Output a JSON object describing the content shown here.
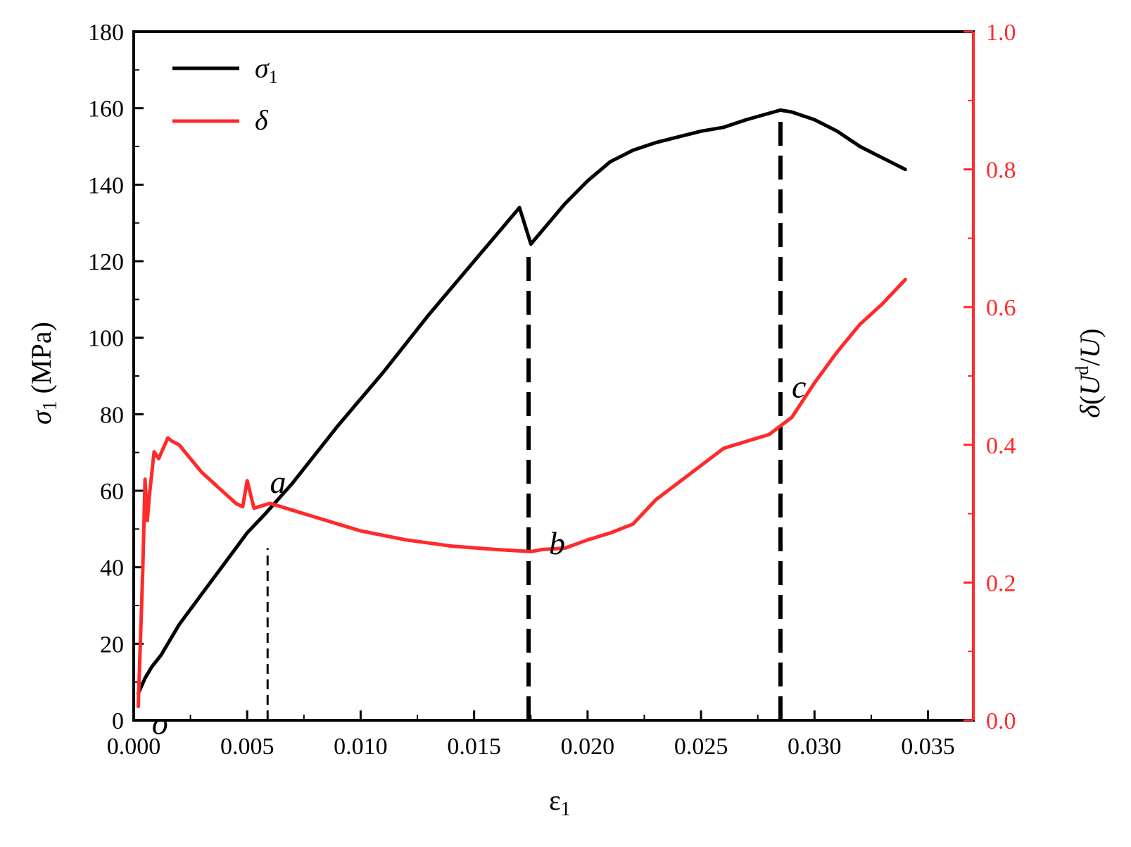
{
  "chart_data": {
    "type": "line",
    "xlabel": "ε",
    "xlabel_sub": "1",
    "ylabel_left": "σ",
    "ylabel_left_sub": "1",
    "ylabel_left_unit": " (MPa)",
    "ylabel_right_prefix": "δ",
    "ylabel_right_paren_open": "(",
    "ylabel_right_U": "U",
    "ylabel_right_sup": "d",
    "ylabel_right_slash": "/",
    "ylabel_right_U2": "U",
    "ylabel_right_paren_close": ")",
    "xlim": [
      0,
      0.037
    ],
    "ylim_left": [
      0,
      180
    ],
    "ylim_right": [
      0,
      1.0
    ],
    "x_ticks": [
      "0.000",
      "0.005",
      "0.010",
      "0.015",
      "0.020",
      "0.025",
      "0.030",
      "0.035"
    ],
    "y_left_ticks": [
      "0",
      "20",
      "40",
      "60",
      "80",
      "100",
      "120",
      "140",
      "160",
      "180"
    ],
    "y_right_ticks": [
      "0.0",
      "0.2",
      "0.4",
      "0.6",
      "0.8",
      "1.0"
    ],
    "legend_position": "top-left",
    "colors": {
      "sigma": "#000000",
      "delta": "#ff2a2a",
      "right_axis": "#ff2a2a"
    },
    "series": [
      {
        "name": "σ",
        "name_sub": "1",
        "axis": "left",
        "x": [
          0.0002,
          0.0005,
          0.0008,
          0.0012,
          0.002,
          0.003,
          0.004,
          0.005,
          0.0058,
          0.007,
          0.009,
          0.011,
          0.013,
          0.015,
          0.017,
          0.0175,
          0.019,
          0.02,
          0.021,
          0.022,
          0.023,
          0.024,
          0.025,
          0.026,
          0.027,
          0.0285,
          0.029,
          0.03,
          0.031,
          0.032,
          0.033,
          0.034
        ],
        "y": [
          7,
          11,
          14,
          17,
          25,
          33,
          41,
          49,
          54,
          62,
          77,
          91,
          106,
          120,
          134,
          124.5,
          135,
          141,
          146,
          149,
          151,
          152.5,
          154,
          155,
          157,
          159.5,
          159,
          157,
          154,
          150,
          147,
          144
        ]
      },
      {
        "name": "δ",
        "axis": "right",
        "x": [
          0.0002,
          0.0003,
          0.0004,
          0.0005,
          0.0006,
          0.0007,
          0.0009,
          0.0011,
          0.0013,
          0.0015,
          0.0017,
          0.002,
          0.0025,
          0.003,
          0.0035,
          0.004,
          0.0045,
          0.0048,
          0.005,
          0.0053,
          0.006,
          0.007,
          0.008,
          0.009,
          0.01,
          0.012,
          0.014,
          0.016,
          0.0175,
          0.018,
          0.019,
          0.02,
          0.021,
          0.022,
          0.023,
          0.024,
          0.025,
          0.026,
          0.027,
          0.028,
          0.029,
          0.03,
          0.031,
          0.032,
          0.033,
          0.034
        ],
        "y": [
          0.02,
          0.12,
          0.22,
          0.35,
          0.29,
          0.33,
          0.39,
          0.38,
          0.395,
          0.41,
          0.405,
          0.4,
          0.38,
          0.36,
          0.345,
          0.33,
          0.315,
          0.31,
          0.348,
          0.308,
          0.315,
          0.305,
          0.295,
          0.285,
          0.275,
          0.262,
          0.253,
          0.248,
          0.245,
          0.248,
          0.25,
          0.262,
          0.272,
          0.285,
          0.32,
          0.345,
          0.37,
          0.395,
          0.405,
          0.415,
          0.44,
          0.49,
          0.535,
          0.575,
          0.605,
          0.64
        ]
      }
    ],
    "dashed_markers": [
      {
        "x": 0.0059,
        "y_top_left": 45,
        "style": "thin"
      },
      {
        "x": 0.0174,
        "y_top_left": 122,
        "style": "thick"
      },
      {
        "x": 0.0285,
        "y_top_left": 159,
        "style": "thick"
      }
    ],
    "annotations": [
      {
        "text": "o",
        "x": 0.0008,
        "y_left": -1
      },
      {
        "text": "a",
        "x": 0.006,
        "y_left": 62
      },
      {
        "text": "b",
        "x": 0.0183,
        "y_left": 46
      },
      {
        "text": "c",
        "x": 0.029,
        "y_left": 87
      }
    ]
  }
}
